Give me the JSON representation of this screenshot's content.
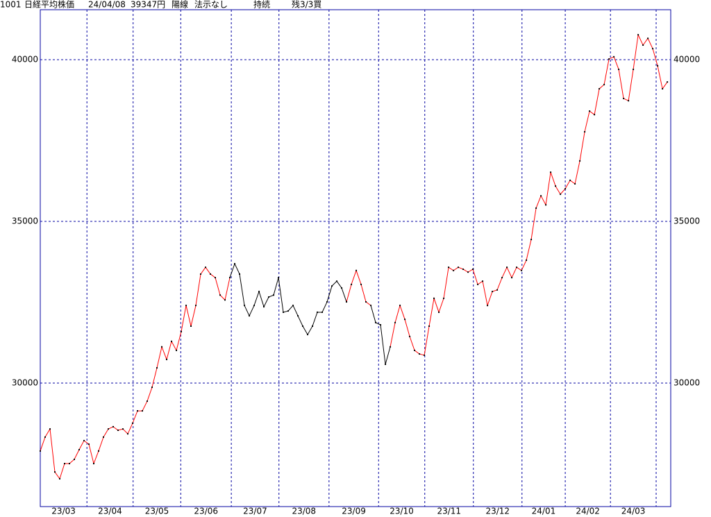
{
  "header": {
    "code": "1001",
    "name": "日経平均株価",
    "date": "24/04/08",
    "price": "39347円",
    "candle": "陽線",
    "method": "法示なし",
    "status": "持続",
    "position": "残3/3買"
  },
  "chart_data": {
    "type": "line",
    "x": [
      0,
      1,
      2,
      3,
      4,
      5,
      6,
      7,
      8,
      9,
      10,
      11,
      12,
      13,
      14,
      15,
      16,
      17,
      18,
      19,
      20,
      21,
      22,
      23,
      24,
      25,
      26,
      27,
      28,
      29,
      30,
      31,
      32,
      33,
      34,
      35,
      36,
      37,
      38,
      39,
      40,
      41,
      42,
      43,
      44,
      45,
      46,
      47,
      48,
      49,
      50,
      51,
      52,
      53,
      54,
      55,
      56,
      57,
      58,
      59,
      60,
      61,
      62,
      63,
      64,
      65,
      66,
      67,
      68,
      69,
      70,
      71,
      72,
      73,
      74,
      75,
      76,
      77,
      78,
      79,
      80,
      81,
      82,
      83,
      84,
      85,
      86,
      87,
      88,
      89,
      90,
      91,
      92,
      93,
      94,
      95,
      96,
      97,
      98,
      99,
      100,
      101,
      102,
      103,
      104,
      105,
      106,
      107,
      108,
      109,
      110,
      111,
      112,
      113,
      114,
      115,
      116,
      117,
      118,
      119,
      120,
      121,
      122,
      123,
      124,
      125,
      126,
      127,
      128,
      129
    ],
    "values": [
      27900,
      28330,
      28580,
      27250,
      27040,
      27510,
      27510,
      27640,
      27940,
      28220,
      28110,
      27510,
      27900,
      28330,
      28580,
      28650,
      28540,
      28580,
      28430,
      28760,
      29140,
      29140,
      29440,
      29870,
      30470,
      31120,
      30730,
      31290,
      31010,
      31590,
      32400,
      31760,
      32400,
      33370,
      33580,
      33370,
      33260,
      32720,
      32570,
      33260,
      33690,
      33370,
      32400,
      32080,
      32400,
      32830,
      32360,
      32660,
      32720,
      33260,
      32190,
      32230,
      32400,
      32080,
      31760,
      31500,
      31760,
      32190,
      32190,
      32510,
      33000,
      33150,
      32940,
      32510,
      33050,
      33480,
      33050,
      32510,
      32400,
      31870,
      31800,
      30580,
      31120,
      31870,
      32400,
      31970,
      31440,
      31010,
      30900,
      30860,
      31760,
      32620,
      32190,
      32620,
      33580,
      33480,
      33580,
      33520,
      33430,
      33520,
      33050,
      33150,
      32400,
      32830,
      32880,
      33260,
      33580,
      33260,
      33580,
      33480,
      33800,
      34440,
      35410,
      35790,
      35510,
      36520,
      36090,
      35840,
      36010,
      36270,
      36160,
      36870,
      37770,
      38410,
      38300,
      39100,
      39230,
      40020,
      40090,
      39700,
      38800,
      38730,
      39700,
      40770,
      40450,
      40660,
      40340,
      39810,
      39100,
      39310
    ],
    "colors": [
      "#ff0000",
      "#ff0000",
      "#ff0000",
      "#ff0000",
      "#ff0000",
      "#ff0000",
      "#ff0000",
      "#ff0000",
      "#ff0000",
      "#ff0000",
      "#ff0000",
      "#ff0000",
      "#ff0000",
      "#ff0000",
      "#ff0000",
      "#ff0000",
      "#ff0000",
      "#ff0000",
      "#ff0000",
      "#ff0000",
      "#ff0000",
      "#ff0000",
      "#ff0000",
      "#ff0000",
      "#ff0000",
      "#ff0000",
      "#ff0000",
      "#ff0000",
      "#ff0000",
      "#ff0000",
      "#ff0000",
      "#ff0000",
      "#ff0000",
      "#ff0000",
      "#ff0000",
      "#ff0000",
      "#ff0000",
      "#ff0000",
      "#ff0000",
      "#ff0000",
      "#000000",
      "#000000",
      "#000000",
      "#000000",
      "#000000",
      "#000000",
      "#000000",
      "#000000",
      "#000000",
      "#000000",
      "#000000",
      "#000000",
      "#000000",
      "#000000",
      "#000000",
      "#000000",
      "#000000",
      "#000000",
      "#000000",
      "#000000",
      "#000000",
      "#000000",
      "#000000",
      "#000000",
      "#ff0000",
      "#ff0000",
      "#ff0000",
      "#ff0000",
      "#ff0000",
      "#000000",
      "#000000",
      "#000000",
      "#000000",
      "#ff0000",
      "#ff0000",
      "#ff0000",
      "#ff0000",
      "#ff0000",
      "#ff0000",
      "#ff0000",
      "#ff0000",
      "#ff0000",
      "#ff0000",
      "#ff0000",
      "#ff0000",
      "#ff0000",
      "#ff0000",
      "#ff0000",
      "#ff0000",
      "#ff0000",
      "#ff0000",
      "#ff0000",
      "#ff0000",
      "#ff0000",
      "#ff0000",
      "#ff0000",
      "#ff0000",
      "#ff0000",
      "#ff0000",
      "#ff0000",
      "#ff0000",
      "#ff0000",
      "#ff0000",
      "#ff0000",
      "#ff0000",
      "#ff0000",
      "#ff0000",
      "#ff0000",
      "#ff0000",
      "#ff0000",
      "#ff0000",
      "#ff0000",
      "#ff0000",
      "#ff0000",
      "#ff0000",
      "#ff0000",
      "#ff0000",
      "#ff0000",
      "#ff0000",
      "#ff0000",
      "#ff0000",
      "#ff0000",
      "#ff0000",
      "#ff0000",
      "#ff0000",
      "#ff0000",
      "#ff0000",
      "#ff0000",
      "#ff0000",
      "#ff0000"
    ],
    "marker_color": "#000000",
    "grid_color": "#0000a0",
    "xlim": [
      0,
      129.7
    ],
    "xticks": [
      9.6,
      19.1,
      28.9,
      39.3,
      49.1,
      59.4,
      69.6,
      79.1,
      89.1,
      99.1,
      108,
      117.3,
      126.7
    ],
    "months": [
      "23/03",
      "23/04",
      "23/05",
      "23/06",
      "23/07",
      "23/08",
      "23/09",
      "23/10",
      "23/11",
      "23/12",
      "24/01",
      "24/02",
      "24/03"
    ],
    "ylim": [
      26180,
      41545
    ],
    "yticks": [
      30000,
      35000,
      40000
    ],
    "grid": true
  }
}
